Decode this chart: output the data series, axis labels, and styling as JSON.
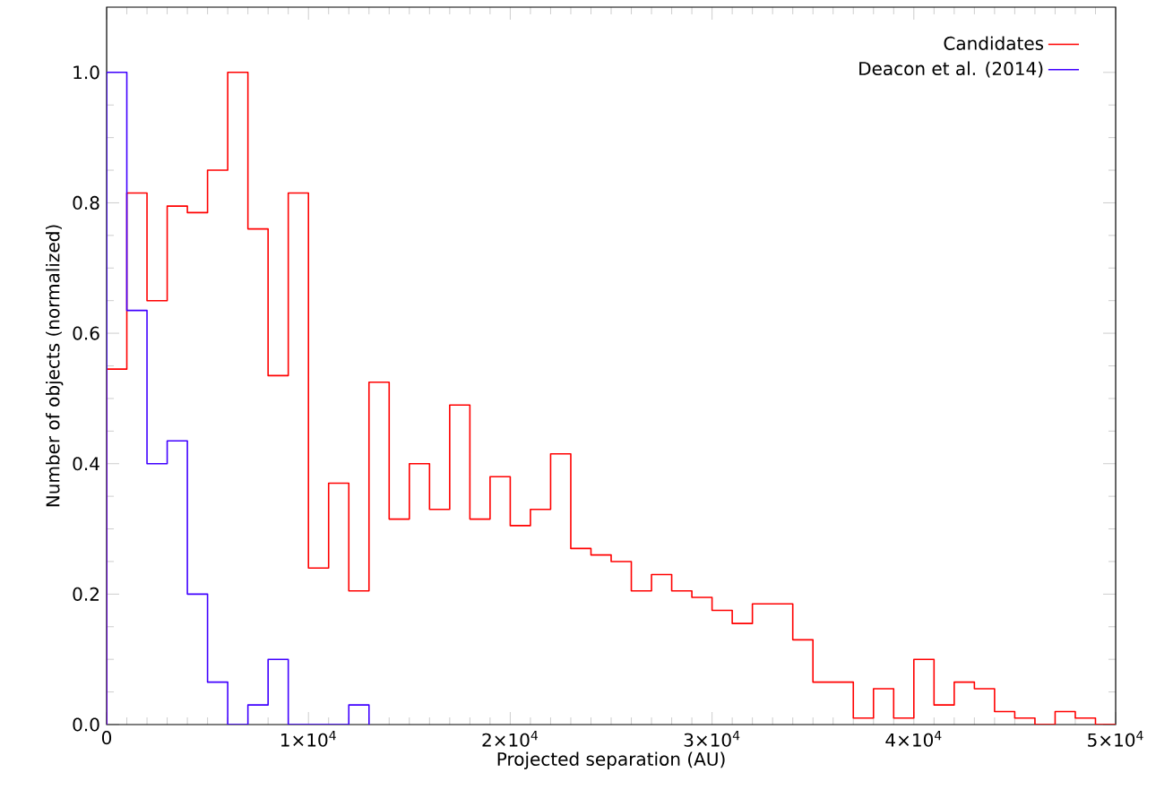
{
  "chart_data": {
    "type": "histogram",
    "xlabel": "Projected separation (AU)",
    "ylabel": "Number of objects (normalized)",
    "xlim": [
      0,
      50000
    ],
    "ylim": [
      0,
      1.1
    ],
    "xticks": [
      0,
      {
        "value": 10000,
        "label": "1×10$^{4}$"
      },
      {
        "value": 20000,
        "label": "2×10$^{4}$"
      },
      {
        "value": 30000,
        "label": "3×10$^{4}$"
      },
      {
        "value": 40000,
        "label": "4×10$^{4}$"
      },
      {
        "value": 50000,
        "label": "5×10$^{4}$"
      }
    ],
    "yticks": [
      {
        "value": 0,
        "label": "0.0"
      },
      {
        "value": 0.2,
        "label": "0.2"
      },
      {
        "value": 0.4,
        "label": "0.4"
      },
      {
        "value": 0.6,
        "label": "0.6"
      },
      {
        "value": 0.8,
        "label": "0.8"
      },
      {
        "value": 1.0,
        "label": "1.0"
      }
    ],
    "legend": "top right",
    "grid": false,
    "bins": [
      0,
      1000,
      2000,
      3000,
      4000,
      5000,
      6000,
      7000,
      8000,
      9000,
      10000,
      11000,
      12000,
      13000,
      14000,
      15000,
      16000,
      17000,
      18000,
      19000,
      20000,
      21000,
      22000,
      23000,
      24000,
      25000,
      26000,
      27000,
      28000,
      29000,
      30000,
      31000,
      32000,
      33000,
      34000,
      35000,
      36000,
      37000,
      38000,
      39000,
      40000,
      41000,
      42000,
      43000,
      44000,
      45000,
      46000,
      47000,
      48000,
      49000,
      50000
    ],
    "series": [
      {
        "name": "Candidates",
        "color": "#ff0000",
        "values": [
          0.545,
          0.815,
          0.65,
          0.795,
          0.785,
          0.85,
          1.0,
          0.76,
          0.535,
          0.815,
          0.24,
          0.37,
          0.205,
          0.525,
          0.315,
          0.4,
          0.33,
          0.49,
          0.315,
          0.38,
          0.305,
          0.33,
          0.415,
          0.27,
          0.26,
          0.25,
          0.205,
          0.23,
          0.205,
          0.195,
          0.175,
          0.155,
          0.185,
          0.185,
          0.13,
          0.065,
          0.065,
          0.01,
          0.055,
          0.01,
          0.1,
          0.03,
          0.065,
          0.055,
          0.02,
          0.01,
          0,
          0.02,
          0.01,
          0
        ]
      },
      {
        "name": "Deacon et al. (2014)",
        "color": "#4000ff",
        "bins": [
          0,
          1000,
          2000,
          3000,
          4000,
          5000,
          6000,
          7000,
          8000,
          9000,
          10000,
          11000,
          12000,
          13000
        ],
        "values": [
          1.0,
          0.635,
          0.4,
          0.435,
          0.2,
          0.065,
          0,
          0.03,
          0.1,
          0,
          0,
          0,
          0.03
        ]
      }
    ]
  }
}
